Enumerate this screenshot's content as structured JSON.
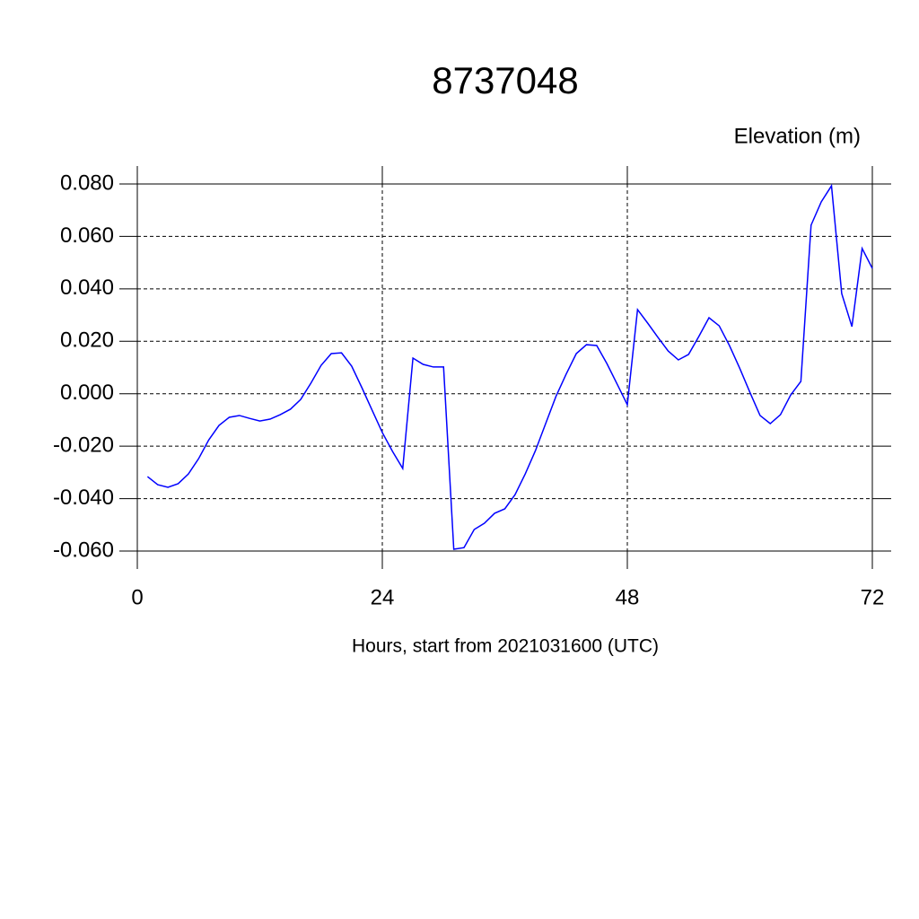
{
  "chart_data": {
    "type": "line",
    "title": "8737048",
    "ylabel": "Elevation (m)",
    "xlabel": "Hours, start from 2021031600 (UTC)",
    "xlim": [
      0,
      72
    ],
    "xticks": [
      0,
      24,
      48,
      72
    ],
    "ylim": [
      -0.06,
      0.08
    ],
    "yticks": [
      {
        "value": -0.06,
        "label": "-0.060"
      },
      {
        "value": -0.04,
        "label": "-0.040"
      },
      {
        "value": -0.02,
        "label": "-0.020"
      },
      {
        "value": 0,
        "label": "0.000"
      },
      {
        "value": 0.02,
        "label": "0.020"
      },
      {
        "value": 0.04,
        "label": "0.040"
      },
      {
        "value": 0.06,
        "label": "0.060"
      },
      {
        "value": 0.08,
        "label": "0.080"
      }
    ],
    "grid": true,
    "x": [
      1,
      2,
      3,
      4,
      5,
      6,
      7,
      8,
      9,
      10,
      11,
      12,
      13,
      14,
      15,
      16,
      17,
      18,
      19,
      20,
      21,
      22,
      23,
      24,
      25,
      26,
      27,
      28,
      29,
      30,
      31,
      32,
      33,
      34,
      35,
      36,
      37,
      38,
      39,
      40,
      41,
      42,
      43,
      44,
      45,
      46,
      47,
      48,
      49,
      50,
      51,
      52,
      53,
      54,
      55,
      56,
      57,
      58,
      59,
      60,
      61,
      62,
      63,
      64,
      65,
      66,
      67,
      68,
      69,
      70,
      71,
      72
    ],
    "series": [
      {
        "color": "#0000ff",
        "values": [
          -0.0316,
          -0.0347,
          -0.0357,
          -0.0343,
          -0.0306,
          -0.0248,
          -0.0176,
          -0.0121,
          -0.009,
          -0.0083,
          -0.0094,
          -0.0104,
          -0.0097,
          -0.008,
          -0.0059,
          -0.0022,
          0.004,
          0.0108,
          0.0153,
          0.0156,
          0.0105,
          0.0023,
          -0.0063,
          -0.0148,
          -0.022,
          -0.0285,
          0.0136,
          0.0112,
          0.0102,
          0.0102,
          -0.0593,
          -0.0587,
          -0.0518,
          -0.0494,
          -0.0456,
          -0.0439,
          -0.0385,
          -0.0306,
          -0.0217,
          -0.0114,
          -0.0011,
          0.0074,
          0.0153,
          0.0187,
          0.0184,
          0.0115,
          0.0037,
          -0.0042,
          0.0321,
          0.0269,
          0.0215,
          0.0163,
          0.0129,
          0.015,
          0.0218,
          0.029,
          0.0259,
          0.0184,
          0.0098,
          0.0006,
          -0.0083,
          -0.0114,
          -0.008,
          -0.0005,
          0.0047,
          0.0643,
          0.0732,
          0.0793,
          0.0382,
          0.0256,
          0.0554,
          0.0478
        ]
      }
    ]
  }
}
